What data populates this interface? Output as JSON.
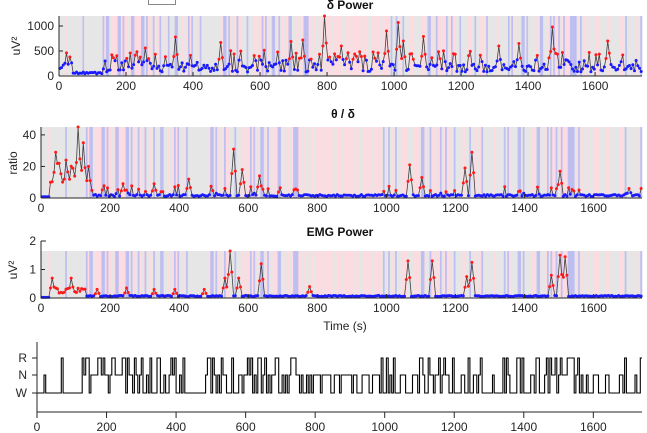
{
  "colors": {
    "wake_band": "#e6e6e6",
    "nrem_band": "#fcdce0",
    "rem_band": "#b4b4ee",
    "rem_line": "#c8c8f5",
    "highlight_point": "#ff1a1a",
    "baseline_point": "#1a1aff",
    "trace_line": "#222222",
    "hypnogram_line": "#000000"
  },
  "chart_data": [
    {
      "id": "delta",
      "type": "line",
      "title": "δ Power",
      "xlabel": "",
      "ylabel": "uV²",
      "xlim": [
        0,
        1740
      ],
      "ylim": [
        0,
        1200
      ],
      "xticks": [
        0,
        200,
        400,
        600,
        800,
        1000,
        1200,
        1400,
        1600
      ],
      "yticks": [
        0,
        500,
        1000
      ],
      "ytick_labels": [
        "0",
        "500",
        "1000"
      ],
      "grid": false,
      "series_desc": "blue baseline ~50-250 uV², red peaks up to ~1200 uV² at ~790 s",
      "peaks": [
        [
          30,
          380
        ],
        [
          255,
          560
        ],
        [
          345,
          780
        ],
        [
          480,
          670
        ],
        [
          650,
          480
        ],
        [
          690,
          690
        ],
        [
          725,
          720
        ],
        [
          790,
          1200
        ],
        [
          840,
          600
        ],
        [
          975,
          900
        ],
        [
          1010,
          1070
        ],
        [
          1025,
          700
        ],
        [
          1085,
          790
        ],
        [
          1310,
          600
        ],
        [
          1370,
          650
        ],
        [
          1470,
          980
        ],
        [
          1635,
          700
        ]
      ]
    },
    {
      "id": "theta-delta",
      "type": "line",
      "title": "θ / δ",
      "xlabel": "",
      "ylabel": "ratio",
      "xlim": [
        0,
        1740
      ],
      "ylim": [
        0,
        45
      ],
      "xticks": [
        0,
        200,
        400,
        600,
        800,
        1000,
        1200,
        1400,
        1600
      ],
      "yticks": [
        0,
        20,
        40
      ],
      "ytick_labels": [
        "0",
        "20",
        "40"
      ],
      "grid": false,
      "peaks": [
        [
          40,
          29
        ],
        [
          70,
          24
        ],
        [
          105,
          45
        ],
        [
          120,
          35
        ],
        [
          135,
          20
        ],
        [
          235,
          9
        ],
        [
          325,
          9
        ],
        [
          425,
          12
        ],
        [
          555,
          31
        ],
        [
          580,
          18
        ],
        [
          630,
          14
        ],
        [
          1065,
          21
        ],
        [
          1100,
          13
        ],
        [
          1245,
          29
        ],
        [
          1225,
          19
        ],
        [
          1500,
          17
        ],
        [
          1700,
          6
        ]
      ]
    },
    {
      "id": "emg",
      "type": "line",
      "title": "EMG Power",
      "xlabel": "Time (s)",
      "ylabel": "uV²",
      "xlim": [
        0,
        1740
      ],
      "ylim": [
        0,
        2
      ],
      "xticks": [
        0,
        200,
        400,
        600,
        800,
        1000,
        1200,
        1400,
        1600
      ],
      "yticks": [
        0,
        1,
        2
      ],
      "ytick_labels": [
        "0",
        "1",
        "2"
      ],
      "grid": false,
      "peaks": [
        [
          30,
          0.7
        ],
        [
          85,
          0.7
        ],
        [
          160,
          0.3
        ],
        [
          245,
          0.35
        ],
        [
          325,
          0.3
        ],
        [
          385,
          0.3
        ],
        [
          470,
          0.3
        ],
        [
          530,
          0.7
        ],
        [
          545,
          1.65
        ],
        [
          570,
          0.7
        ],
        [
          635,
          1.2
        ],
        [
          775,
          0.4
        ],
        [
          1060,
          1.3
        ],
        [
          1130,
          1.3
        ],
        [
          1230,
          0.75
        ],
        [
          1245,
          1.25
        ],
        [
          1475,
          0.8
        ],
        [
          1500,
          1.5
        ],
        [
          1515,
          1.45
        ]
      ]
    },
    {
      "id": "hypnogram",
      "type": "line",
      "title": "",
      "xlabel": "",
      "ylabel": "",
      "xlim": [
        0,
        1740
      ],
      "ylim": [
        "W",
        "R"
      ],
      "xticks": [
        0,
        200,
        400,
        600,
        800,
        1000,
        1200,
        1400,
        1600
      ],
      "ytick_labels": [
        "W",
        "N",
        "R"
      ],
      "grid": false
    }
  ],
  "x_tick_labels": [
    "0",
    "200",
    "400",
    "600",
    "800",
    "1000",
    "1200",
    "1400",
    "1600"
  ]
}
